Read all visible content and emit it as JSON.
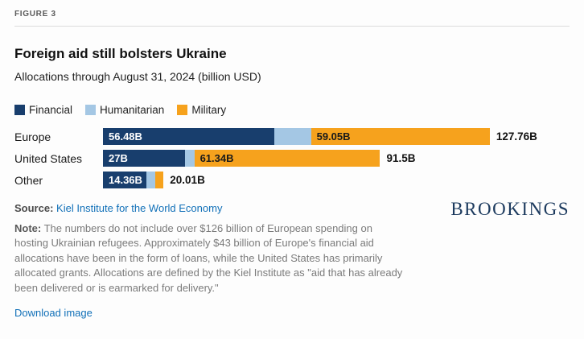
{
  "figure_label": "FIGURE 3",
  "title": "Foreign aid still bolsters Ukraine",
  "subtitle": "Allocations through August 31, 2024 (billion USD)",
  "legend": [
    {
      "label": "Financial",
      "color": "#183e6d"
    },
    {
      "label": "Humanitarian",
      "color": "#a4c7e4"
    },
    {
      "label": "Military",
      "color": "#f6a21d"
    }
  ],
  "chart_data": {
    "type": "bar",
    "orientation": "horizontal",
    "stacked": true,
    "title": "Foreign aid still bolsters Ukraine",
    "subtitle": "Allocations through August 31, 2024 (billion USD)",
    "unit": "billion USD",
    "categories": [
      "Europe",
      "United States",
      "Other"
    ],
    "series": [
      {
        "name": "Financial",
        "color": "#183e6d",
        "label_color": "#ffffff",
        "values": [
          56.48,
          27,
          14.36
        ],
        "labels": [
          "56.48B",
          "27B",
          "14.36B"
        ]
      },
      {
        "name": "Humanitarian",
        "color": "#a4c7e4",
        "label_color": "#1a1a1a",
        "values": [
          12.23,
          3.16,
          2.8
        ],
        "labels": [
          "",
          "",
          ""
        ]
      },
      {
        "name": "Military",
        "color": "#f6a21d",
        "label_color": "#1a1a1a",
        "values": [
          59.05,
          61.34,
          2.85
        ],
        "labels": [
          "59.05B",
          "61.34B",
          ""
        ]
      }
    ],
    "totals": [
      "127.76B",
      "91.5B",
      "20.01B"
    ],
    "xmax": 127.76,
    "grid": false,
    "legend_position": "top"
  },
  "source": {
    "label": "Source:",
    "text": "Kiel Institute for the World Economy"
  },
  "note": {
    "label": "Note:",
    "text": "The numbers do not include over $126 billion of European spending on hosting Ukrainian refugees. Approximately $43 billion of Europe's financial aid allocations have been in the form of loans, while the United States has primarily allocated grants. Allocations are defined by the Kiel Institute as \"aid that has already been delivered or is earmarked for delivery.\""
  },
  "brand": "BROOKINGS",
  "download_label": "Download image"
}
